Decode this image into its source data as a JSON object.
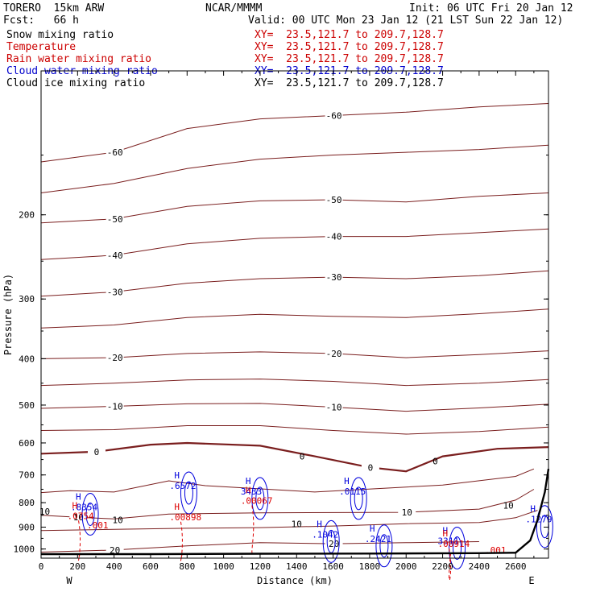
{
  "header": {
    "model": "TORERO  15km ARW",
    "center": "NCAR/MMMM",
    "init": "Init: 06 UTC Fri 20 Jan 12",
    "fcst": "Fcst:   66 h",
    "valid": "Valid: 00 UTC Mon 23 Jan 12 (21 LST Sun 22 Jan 12)",
    "fields": [
      {
        "name": "Snow mixing ratio",
        "xy": "XY=  23.5,121.7 to 209.7,128.7",
        "color": "#000000"
      },
      {
        "name": "Temperature",
        "xy": "XY=  23.5,121.7 to 209.7,128.7",
        "color": "#cc0000"
      },
      {
        "name": "Rain water mixing ratio",
        "xy": "XY=  23.5,121.7 to 209.7,128.7",
        "color": "#cc0000"
      },
      {
        "name": "Cloud water mixing ratio",
        "xy": "XY=  23.5,121.7 to 209.7,128.7",
        "color": "#0000cc"
      },
      {
        "name": "Cloud ice mixing ratio",
        "xy": "XY=  23.5,121.7 to 209.7,128.7",
        "color": "#000000"
      }
    ]
  },
  "chart_data": {
    "type": "line",
    "title": "",
    "xlabel": "Distance (km)",
    "ylabel": "Pressure (hPa)",
    "xlim": [
      0,
      2780
    ],
    "ylim": [
      1045,
      100
    ],
    "y_scale": "log",
    "x_ticks": [
      0,
      200,
      400,
      600,
      800,
      1000,
      1200,
      1400,
      1600,
      1800,
      2000,
      2200,
      2400,
      2600
    ],
    "y_ticks": [
      200,
      300,
      400,
      500,
      600,
      700,
      800,
      900,
      1000
    ],
    "x_end_labels": {
      "left": "W",
      "right": "E"
    },
    "colors": {
      "temperature": "#7a1e1e",
      "rain": "#dd0000",
      "cloud_water": "#0000dd",
      "ground": "#000000"
    },
    "isotherms": [
      {
        "label": "-60",
        "points": [
          [
            0,
            155
          ],
          [
            400,
            148
          ],
          [
            800,
            132
          ],
          [
            1200,
            126
          ],
          [
            1600,
            124
          ],
          [
            2000,
            122
          ],
          [
            2400,
            119
          ],
          [
            2780,
            117
          ]
        ]
      },
      {
        "label": "",
        "points": [
          [
            0,
            180
          ],
          [
            400,
            172
          ],
          [
            800,
            160
          ],
          [
            1200,
            153
          ],
          [
            1600,
            150
          ],
          [
            2000,
            148
          ],
          [
            2400,
            146
          ],
          [
            2780,
            143
          ]
        ]
      },
      {
        "label": "-50",
        "points": [
          [
            0,
            208
          ],
          [
            400,
            204
          ],
          [
            800,
            192
          ],
          [
            1200,
            187
          ],
          [
            1600,
            186
          ],
          [
            2000,
            188
          ],
          [
            2400,
            183
          ],
          [
            2780,
            180
          ]
        ]
      },
      {
        "label": "-40",
        "points": [
          [
            0,
            248
          ],
          [
            400,
            243
          ],
          [
            800,
            230
          ],
          [
            1200,
            224
          ],
          [
            1600,
            222
          ],
          [
            2000,
            222
          ],
          [
            2400,
            218
          ],
          [
            2780,
            214
          ]
        ]
      },
      {
        "label": "-30",
        "points": [
          [
            0,
            296
          ],
          [
            400,
            290
          ],
          [
            800,
            278
          ],
          [
            1200,
            272
          ],
          [
            1600,
            270
          ],
          [
            2000,
            272
          ],
          [
            2400,
            268
          ],
          [
            2780,
            262
          ]
        ]
      },
      {
        "label": "",
        "points": [
          [
            0,
            345
          ],
          [
            400,
            340
          ],
          [
            800,
            328
          ],
          [
            1200,
            323
          ],
          [
            1600,
            326
          ],
          [
            2000,
            328
          ],
          [
            2400,
            322
          ],
          [
            2780,
            315
          ]
        ]
      },
      {
        "label": "-20",
        "points": [
          [
            0,
            400
          ],
          [
            400,
            398
          ],
          [
            800,
            390
          ],
          [
            1200,
            387
          ],
          [
            1600,
            390
          ],
          [
            2000,
            398
          ],
          [
            2400,
            392
          ],
          [
            2780,
            385
          ]
        ]
      },
      {
        "label": "",
        "points": [
          [
            0,
            455
          ],
          [
            400,
            450
          ],
          [
            800,
            443
          ],
          [
            1200,
            441
          ],
          [
            1600,
            446
          ],
          [
            2000,
            455
          ],
          [
            2400,
            450
          ],
          [
            2780,
            442
          ]
        ]
      },
      {
        "label": "-10",
        "points": [
          [
            0,
            508
          ],
          [
            400,
            503
          ],
          [
            800,
            497
          ],
          [
            1200,
            496
          ],
          [
            1600,
            505
          ],
          [
            2000,
            515
          ],
          [
            2400,
            507
          ],
          [
            2780,
            498
          ]
        ]
      },
      {
        "label": "",
        "points": [
          [
            0,
            565
          ],
          [
            400,
            563
          ],
          [
            800,
            552
          ],
          [
            1200,
            552
          ],
          [
            1600,
            565
          ],
          [
            2000,
            575
          ],
          [
            2400,
            568
          ],
          [
            2780,
            556
          ]
        ]
      },
      {
        "label": "0",
        "points": [
          [
            0,
            632
          ],
          [
            300,
            626
          ],
          [
            600,
            605
          ],
          [
            800,
            600
          ],
          [
            1200,
            608
          ],
          [
            1500,
            640
          ],
          [
            1800,
            675
          ],
          [
            2000,
            688
          ],
          [
            2200,
            640
          ],
          [
            2500,
            617
          ],
          [
            2780,
            612
          ]
        ]
      },
      {
        "label": "",
        "points": [
          [
            0,
            762
          ],
          [
            160,
            755
          ],
          [
            400,
            760
          ],
          [
            700,
            720
          ],
          [
            900,
            737
          ],
          [
            1500,
            760
          ],
          [
            2200,
            735
          ],
          [
            2600,
            705
          ],
          [
            2700,
            680
          ]
        ]
      },
      {
        "label": "10",
        "points": [
          [
            0,
            850
          ],
          [
            200,
            858
          ],
          [
            400,
            865
          ],
          [
            700,
            845
          ],
          [
            1200,
            840
          ],
          [
            2000,
            838
          ],
          [
            2400,
            825
          ],
          [
            2600,
            790
          ],
          [
            2700,
            750
          ]
        ]
      },
      {
        "label": "",
        "points": [
          [
            0,
            915
          ],
          [
            400,
            910
          ],
          [
            800,
            905
          ],
          [
            1200,
            902
          ],
          [
            1600,
            895
          ],
          [
            2000,
            885
          ],
          [
            2400,
            880
          ],
          [
            2600,
            860
          ],
          [
            2720,
            830
          ]
        ]
      },
      {
        "label": "20",
        "points": [
          [
            0,
            1015
          ],
          [
            400,
            1005
          ],
          [
            800,
            985
          ],
          [
            1200,
            970
          ],
          [
            1600,
            975
          ],
          [
            2000,
            970
          ],
          [
            2400,
            965
          ]
        ]
      }
    ],
    "cloud_water_maxima": [
      {
        "x": 190,
        "p": 820,
        "value": ".8354"
      },
      {
        "x": 730,
        "p": 740,
        "value": ".6572"
      },
      {
        "x": 1120,
        "p": 760,
        "value": "3433"
      },
      {
        "x": 1660,
        "p": 760,
        "value": ".0115"
      },
      {
        "x": 1510,
        "p": 935,
        "value": ".1042"
      },
      {
        "x": 1800,
        "p": 955,
        "value": ".2421"
      },
      {
        "x": 2200,
        "p": 965,
        "value": "3311"
      },
      {
        "x": 2680,
        "p": 870,
        "value": ".1279"
      }
    ],
    "rain_maxima": [
      {
        "x": 170,
        "p": 855,
        "value": ".0754"
      },
      {
        "x": 730,
        "p": 860,
        "value": ".00898"
      },
      {
        "x": 1120,
        "p": 795,
        "value": ".00067"
      },
      {
        "x": 2200,
        "p": 978,
        "value": ".00914"
      }
    ],
    "rain_labels": [
      {
        "x": 310,
        "p": 905,
        "value": ".001"
      },
      {
        "x": 2490,
        "p": 1020,
        "value": ".001"
      }
    ],
    "isotherm_extra_labels": [
      {
        "x": 20,
        "p": 835,
        "value": "10"
      },
      {
        "x": 420,
        "p": 870,
        "value": "10"
      },
      {
        "x": 1400,
        "p": 887,
        "value": "10"
      },
      {
        "x": 2560,
        "p": 810,
        "value": "10"
      },
      {
        "x": 1430,
        "p": 640,
        "value": "0"
      },
      {
        "x": 2160,
        "p": 655,
        "value": "0"
      }
    ],
    "ground_pressure": [
      [
        0,
        1025
      ],
      [
        600,
        1025
      ],
      [
        1200,
        1023
      ],
      [
        1800,
        1022
      ],
      [
        2400,
        1020
      ],
      [
        2600,
        1018
      ],
      [
        2680,
        960
      ],
      [
        2720,
        870
      ],
      [
        2760,
        760
      ],
      [
        2780,
        680
      ]
    ]
  }
}
